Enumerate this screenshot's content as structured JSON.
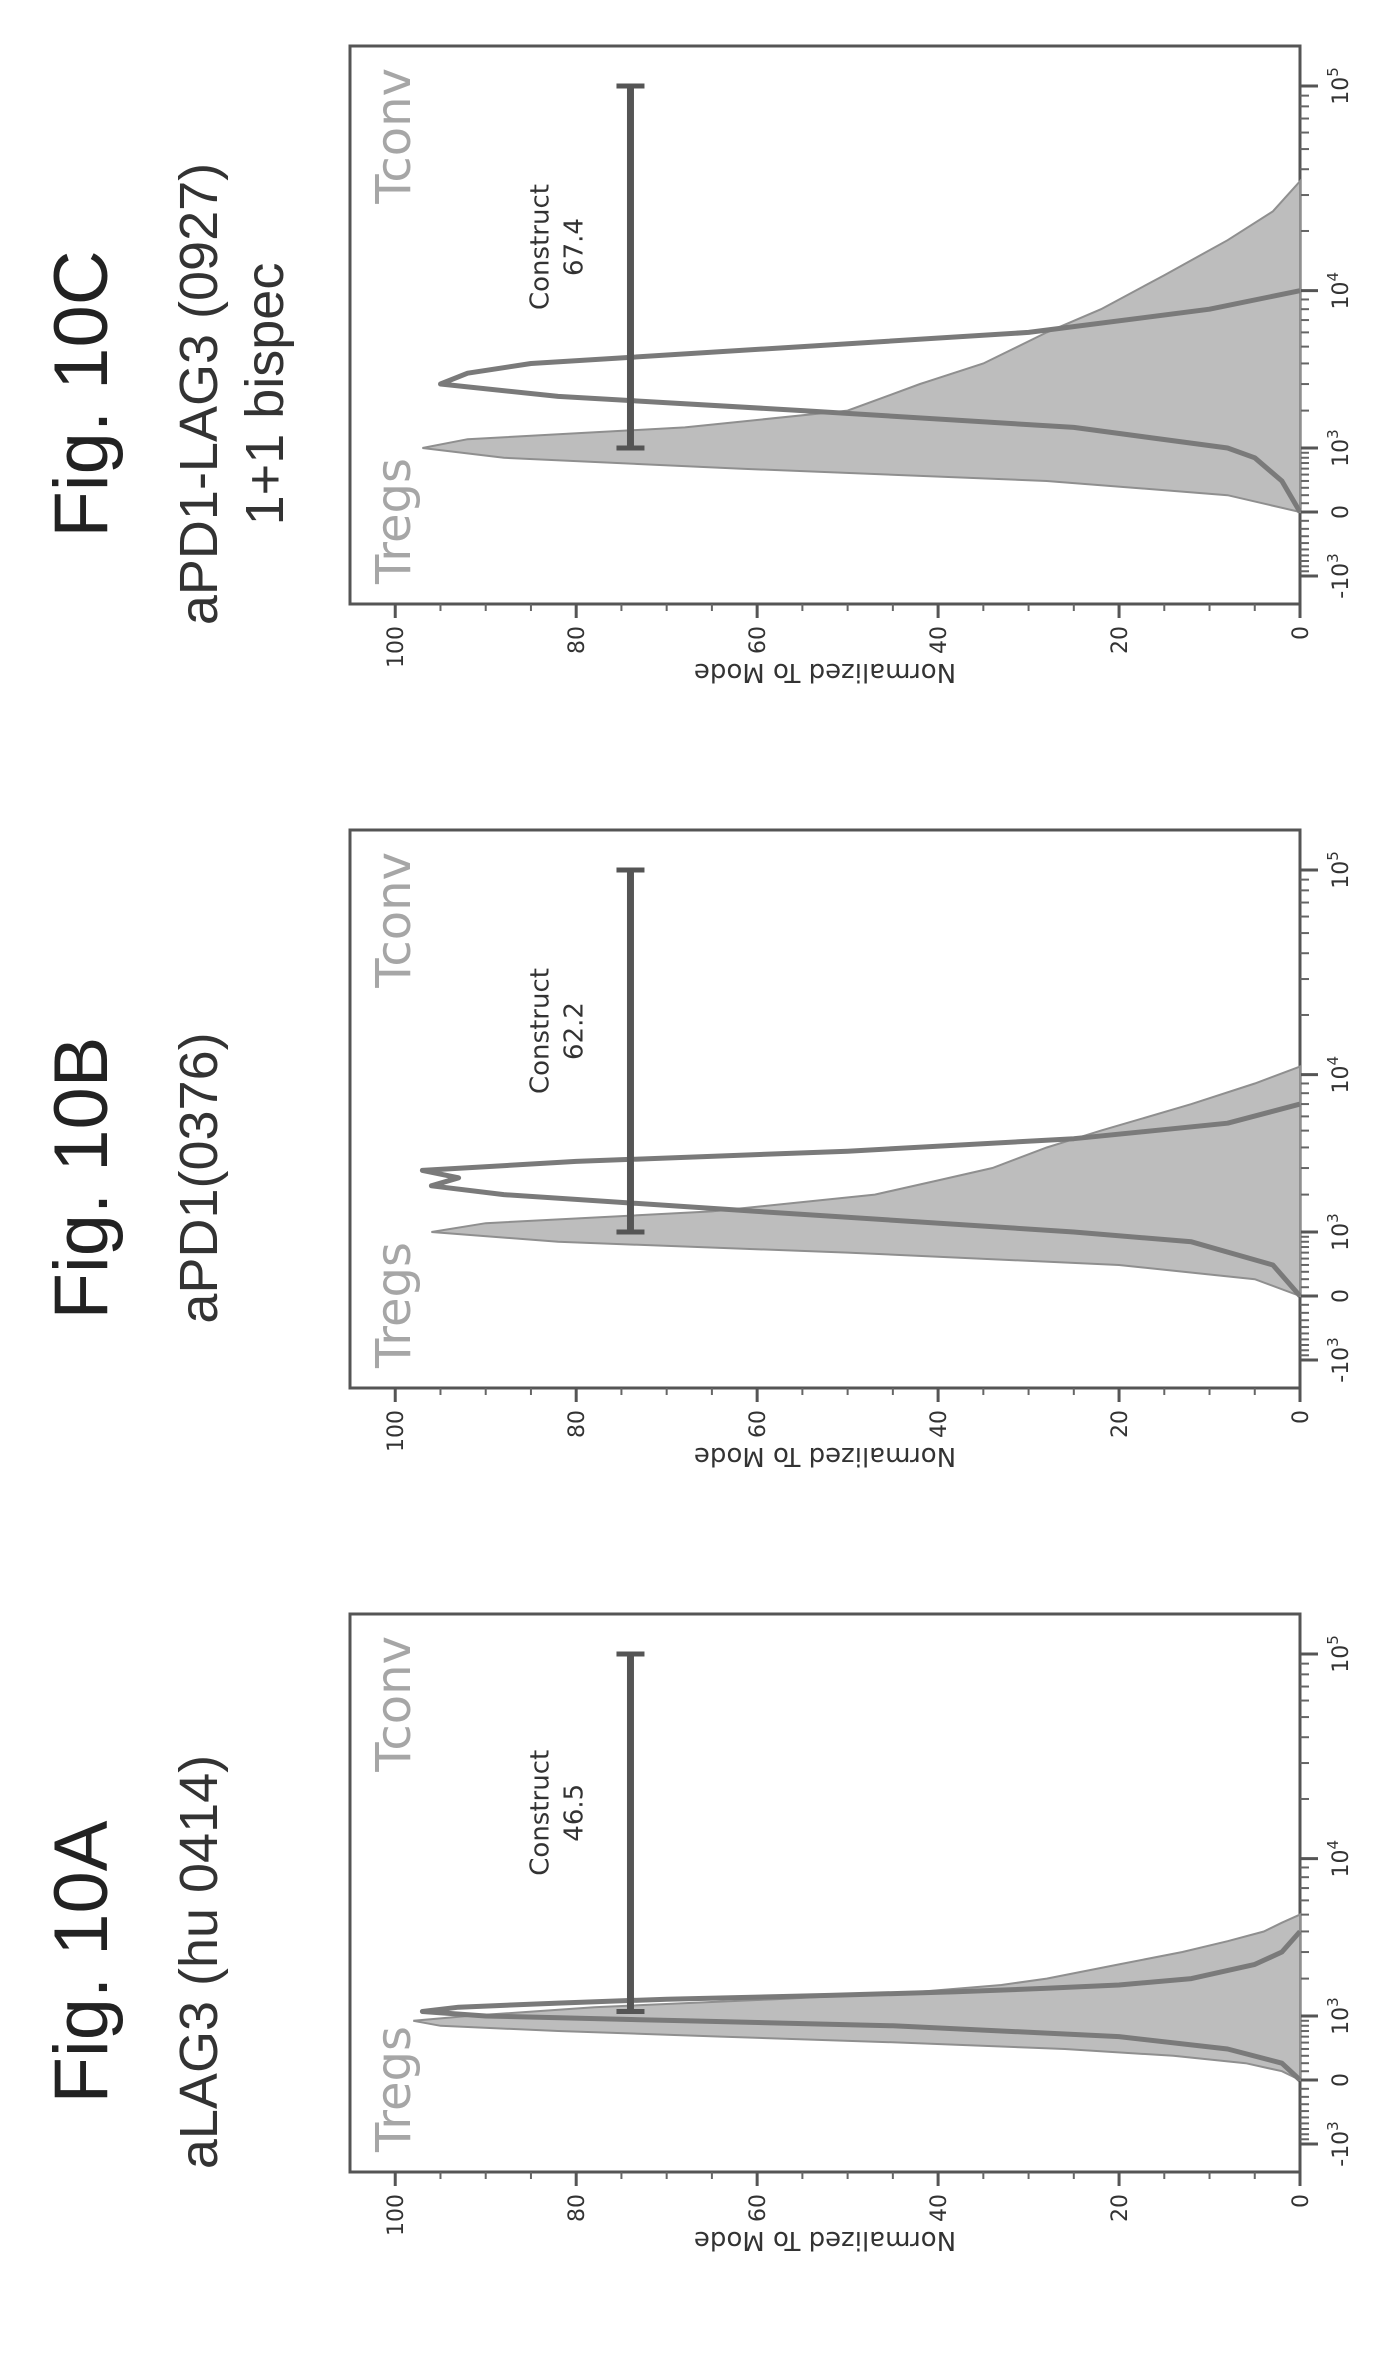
{
  "chart_data": [
    {
      "type": "area",
      "figure_label": "Fig. 10A",
      "title": "aLAG3 (hu 0414)",
      "ylabel": "Normalized To Mode",
      "xlabel": "",
      "x_scale": "biexponential",
      "x_ticks": [
        {
          "value": -1000,
          "base": "-10",
          "exp": "3"
        },
        {
          "value": 0,
          "base": "0",
          "exp": ""
        },
        {
          "value": 1000,
          "base": "10",
          "exp": "3"
        },
        {
          "value": 10000,
          "base": "10",
          "exp": "4"
        },
        {
          "value": 100000,
          "base": "10",
          "exp": "5"
        }
      ],
      "y_ticks": [
        "0",
        "20",
        "40",
        "60",
        "80",
        "100"
      ],
      "ylim": [
        0,
        105
      ],
      "legend": [
        {
          "label": "Tregs",
          "position": "top-left"
        },
        {
          "label": "Tconv",
          "position": "top-right"
        }
      ],
      "series": [
        {
          "name": "Tregs",
          "style": "filled",
          "x": [
            0,
            100,
            200,
            300,
            400,
            500,
            600,
            700,
            800,
            900,
            1000,
            1200,
            1400,
            1600,
            1800,
            2000,
            2500,
            3000,
            3500,
            4000,
            4500,
            5000
          ],
          "y": [
            0,
            2,
            6,
            14,
            26,
            44,
            64,
            82,
            95,
            98,
            92,
            78,
            58,
            42,
            33,
            28,
            20,
            13,
            8,
            4,
            2,
            0
          ]
        },
        {
          "name": "Tconv",
          "style": "line",
          "x": [
            0,
            200,
            400,
            600,
            800,
            900,
            1000,
            1100,
            1200,
            1300,
            1400,
            1500,
            1600,
            1700,
            1800,
            2000,
            2500,
            3000,
            4000
          ],
          "y": [
            0,
            2,
            8,
            20,
            45,
            68,
            90,
            97,
            93,
            82,
            70,
            52,
            38,
            28,
            20,
            12,
            5,
            2,
            0
          ]
        }
      ],
      "gate": {
        "label": "Construct",
        "value": "46.5",
        "x_start": 1100,
        "x_end": 100000,
        "y": 74
      }
    },
    {
      "type": "area",
      "figure_label": "Fig. 10B",
      "title": "aPD1(0376)",
      "ylabel": "Normalized To Mode",
      "xlabel": "",
      "x_scale": "biexponential",
      "x_ticks": [
        {
          "value": -1000,
          "base": "-10",
          "exp": "3"
        },
        {
          "value": 0,
          "base": "0",
          "exp": ""
        },
        {
          "value": 1000,
          "base": "10",
          "exp": "3"
        },
        {
          "value": 10000,
          "base": "10",
          "exp": "4"
        },
        {
          "value": 100000,
          "base": "10",
          "exp": "5"
        }
      ],
      "y_ticks": [
        "0",
        "20",
        "40",
        "60",
        "80",
        "100"
      ],
      "ylim": [
        0,
        105
      ],
      "legend": [
        {
          "label": "Tregs",
          "position": "top-left"
        },
        {
          "label": "Tconv",
          "position": "top-right"
        }
      ],
      "series": [
        {
          "name": "Tregs",
          "style": "filled",
          "x": [
            0,
            200,
            400,
            600,
            800,
            1000,
            1200,
            1500,
            2000,
            2500,
            3000,
            4000,
            5000,
            7000,
            9000,
            11000
          ],
          "y": [
            0,
            5,
            20,
            50,
            82,
            96,
            90,
            65,
            47,
            40,
            34,
            28,
            22,
            12,
            5,
            0
          ]
        },
        {
          "name": "Tconv",
          "style": "line",
          "x": [
            0,
            400,
            800,
            1000,
            1500,
            2000,
            2300,
            2600,
            2900,
            3300,
            3800,
            4500,
            5500,
            7000
          ],
          "y": [
            0,
            3,
            12,
            25,
            60,
            88,
            96,
            93,
            97,
            80,
            50,
            25,
            8,
            0
          ]
        }
      ],
      "gate": {
        "label": "Construct",
        "value": "62.2",
        "x_start": 1000,
        "x_end": 100000,
        "y": 74
      }
    },
    {
      "type": "area",
      "figure_label": "Fig. 10C",
      "title": "aPD1-LAG3 (0927)\n1+1 bispec",
      "ylabel": "Normalized To Mode",
      "xlabel": "",
      "x_scale": "biexponential",
      "x_ticks": [
        {
          "value": -1000,
          "base": "-10",
          "exp": "3"
        },
        {
          "value": 0,
          "base": "0",
          "exp": ""
        },
        {
          "value": 1000,
          "base": "10",
          "exp": "3"
        },
        {
          "value": 10000,
          "base": "10",
          "exp": "4"
        },
        {
          "value": 100000,
          "base": "10",
          "exp": "5"
        }
      ],
      "y_ticks": [
        "0",
        "20",
        "40",
        "60",
        "80",
        "100"
      ],
      "ylim": [
        0,
        105
      ],
      "legend": [
        {
          "label": "Tregs",
          "position": "top-left"
        },
        {
          "label": "Tconv",
          "position": "top-right"
        }
      ],
      "series": [
        {
          "name": "Tregs",
          "style": "filled",
          "x": [
            0,
            200,
            400,
            600,
            800,
            1000,
            1200,
            1500,
            2000,
            3000,
            4000,
            6000,
            8000,
            12000,
            18000,
            25000,
            35000
          ],
          "y": [
            0,
            8,
            28,
            62,
            88,
            97,
            92,
            68,
            50,
            42,
            35,
            28,
            22,
            15,
            8,
            3,
            0
          ]
        },
        {
          "name": "Tconv",
          "style": "line",
          "x": [
            0,
            400,
            800,
            1000,
            1500,
            2000,
            2500,
            3000,
            3500,
            4000,
            5000,
            6000,
            8000,
            10000
          ],
          "y": [
            0,
            2,
            5,
            8,
            25,
            55,
            82,
            95,
            92,
            85,
            55,
            30,
            10,
            0
          ]
        }
      ],
      "gate": {
        "label": "Construct",
        "value": "67.4",
        "x_start": 1000,
        "x_end": 100000,
        "y": 74
      }
    }
  ]
}
